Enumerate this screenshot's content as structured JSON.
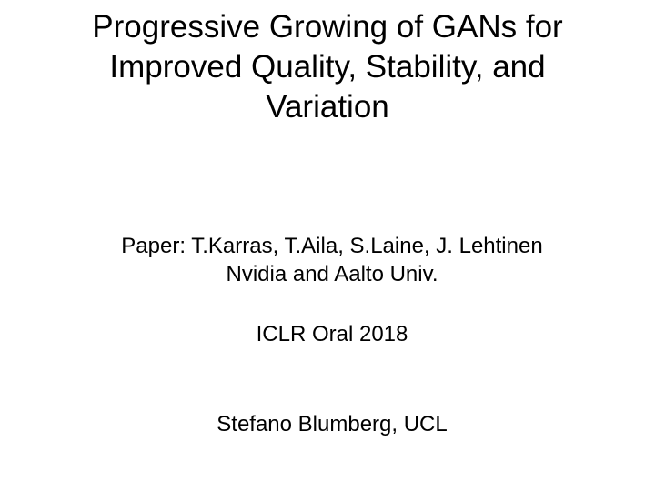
{
  "slide": {
    "title_lines": [
      "Progressive Growing of GANs for",
      "Improved Quality, Stability, and",
      "Variation"
    ],
    "authors": "Paper: T.Karras, T.Aila, S.Laine, J. Lehtinen",
    "affiliation": "Nvidia and Aalto Univ.",
    "venue": "ICLR Oral 2018",
    "presenter": "Stefano Blumberg, UCL"
  }
}
